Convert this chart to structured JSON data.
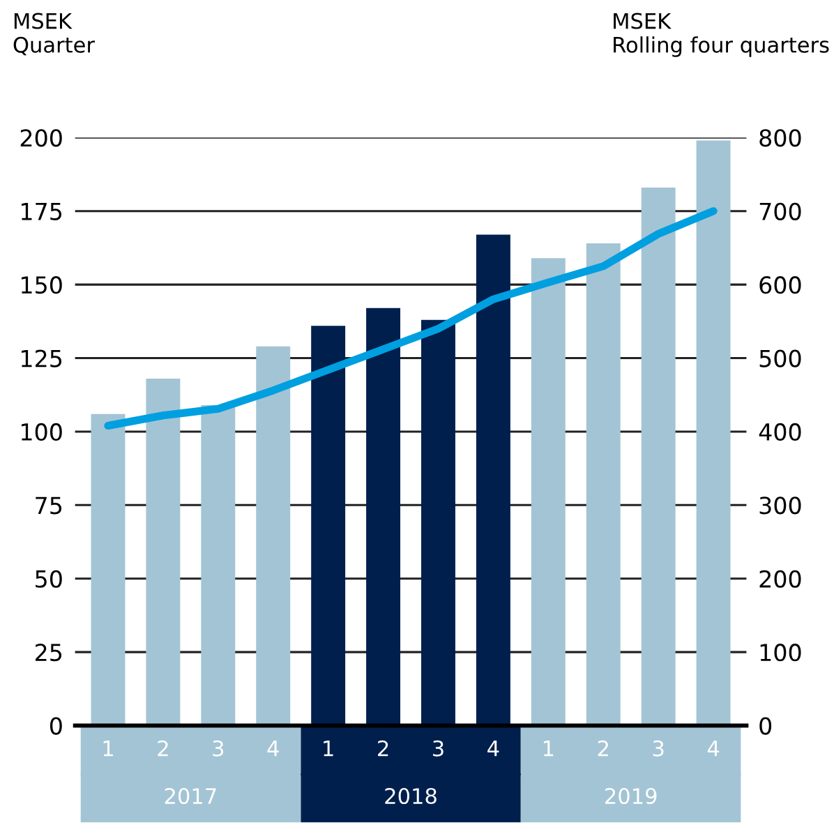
{
  "chart_data": {
    "type": "bar",
    "ylabel": "MSEK\nQuarter",
    "y2label": "MSEK\nRolling four quarters",
    "categories": [
      "1",
      "2",
      "3",
      "4",
      "1",
      "2",
      "3",
      "4",
      "1",
      "2",
      "3",
      "4"
    ],
    "annotations": [
      "2017",
      "2018",
      "2019"
    ],
    "series": [
      {
        "colors": [
          "#a3c4d4",
          "#a3c4d4",
          "#a3c4d4",
          "#a3c4d4",
          "#001f4d",
          "#001f4d",
          "#001f4d",
          "#001f4d",
          "#a3c4d4",
          "#a3c4d4",
          "#a3c4d4",
          "#a3c4d4"
        ],
        "values": [
          106,
          118,
          109,
          129,
          136,
          142,
          138,
          167,
          159,
          164,
          183,
          199
        ]
      },
      {
        "type": "line",
        "axis": "y2",
        "color": "#009fe0",
        "values": [
          408,
          422,
          431,
          456,
          484,
          512,
          540,
          580,
          603,
          625,
          669,
          700
        ]
      }
    ],
    "ylim": [
      0,
      200
    ],
    "yticks": [
      0,
      25,
      50,
      75,
      100,
      125,
      150,
      175,
      200
    ],
    "y2lim": [
      0,
      800
    ],
    "y2ticks": [
      0,
      100,
      200,
      300,
      400,
      500,
      600,
      700,
      800
    ],
    "grid": "y",
    "legend": false,
    "marker": "none",
    "line_style": "solid"
  }
}
